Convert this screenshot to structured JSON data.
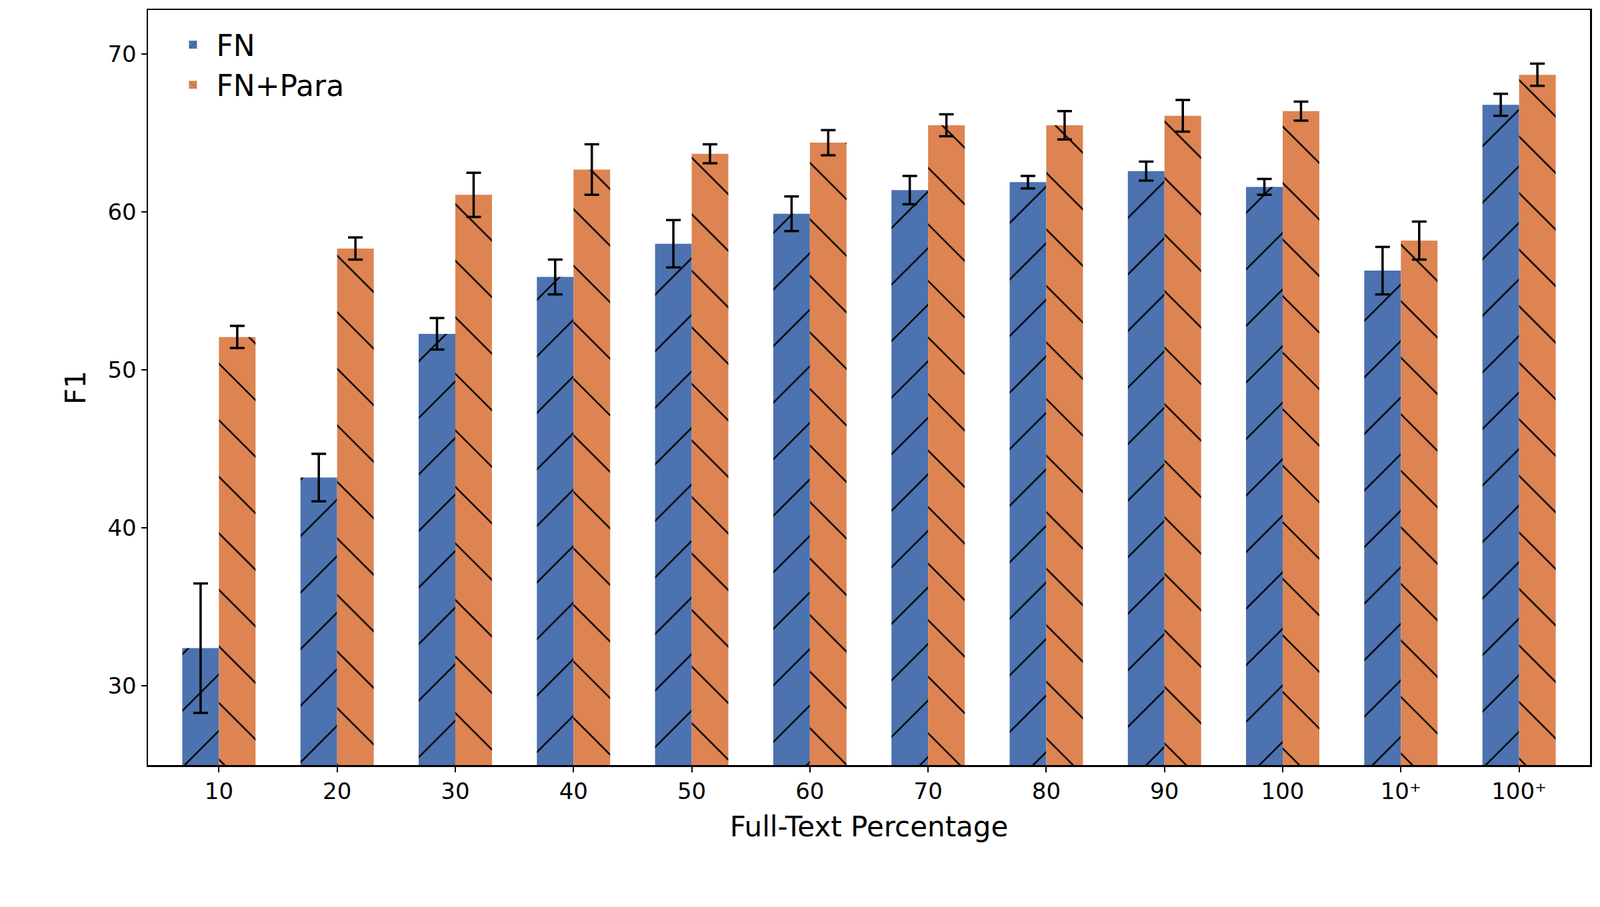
{
  "chart_data": {
    "type": "bar",
    "x_label": "Full-Text Percentage",
    "y_label": "F1",
    "categories": [
      "10",
      "20",
      "30",
      "40",
      "50",
      "60",
      "70",
      "80",
      "90",
      "100",
      "10⁺",
      "100⁺"
    ],
    "series": [
      {
        "name": "FN",
        "color": "#4c72b0",
        "values": [
          32.4,
          43.2,
          52.3,
          55.9,
          58.0,
          59.9,
          61.4,
          61.9,
          62.6,
          61.6,
          56.3,
          66.8
        ],
        "errors": [
          4.1,
          1.5,
          1.0,
          1.1,
          1.5,
          1.1,
          0.9,
          0.4,
          0.6,
          0.5,
          1.5,
          0.7
        ]
      },
      {
        "name": "FN+Para",
        "color": "#dd8452",
        "values": [
          52.1,
          57.7,
          61.1,
          62.7,
          63.7,
          64.4,
          65.5,
          65.5,
          66.1,
          66.4,
          58.2,
          68.7
        ],
        "errors": [
          0.7,
          0.7,
          1.4,
          1.6,
          0.6,
          0.8,
          0.7,
          0.9,
          1.0,
          0.6,
          1.2,
          0.7
        ]
      }
    ],
    "ylim": [
      25,
      72.8
    ],
    "yticks": [
      30,
      40,
      50,
      60,
      70
    ],
    "grid": false,
    "legend": "upper left"
  }
}
